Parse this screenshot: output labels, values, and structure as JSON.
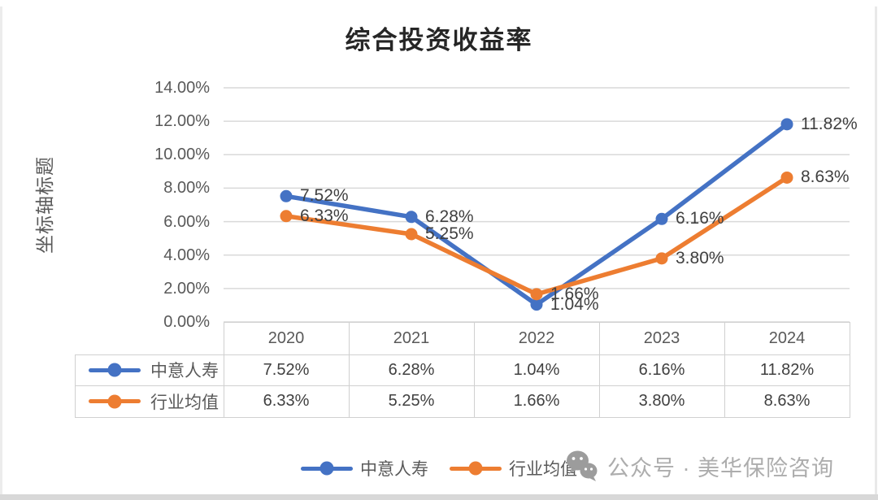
{
  "chart_data": {
    "type": "line",
    "title": "综合投资收益率",
    "y_axis_title": "坐标轴标题",
    "categories": [
      "2020",
      "2021",
      "2022",
      "2023",
      "2024"
    ],
    "series": [
      {
        "name": "中意人寿",
        "color": "#4472C4",
        "values": [
          7.52,
          6.28,
          1.04,
          6.16,
          11.82
        ],
        "labels": [
          "7.52%",
          "6.28%",
          "1.04%",
          "6.16%",
          "11.82%"
        ]
      },
      {
        "name": "行业均值",
        "color": "#ED7D31",
        "values": [
          6.33,
          5.25,
          1.66,
          3.8,
          8.63
        ],
        "labels": [
          "6.33%",
          "5.25%",
          "1.66%",
          "3.80%",
          "8.63%"
        ]
      }
    ],
    "ylim": [
      0,
      14
    ],
    "y_tick_step": 2,
    "y_ticks": [
      "0.00%",
      "2.00%",
      "4.00%",
      "6.00%",
      "8.00%",
      "10.00%",
      "12.00%",
      "14.00%"
    ],
    "grid": true,
    "gridline_color": "#D9D9D9",
    "legend_position": "bottom",
    "data_table_shown": true
  },
  "watermark": {
    "icon": "wechat-icon",
    "text": "公众号 · 美华保险咨询"
  }
}
